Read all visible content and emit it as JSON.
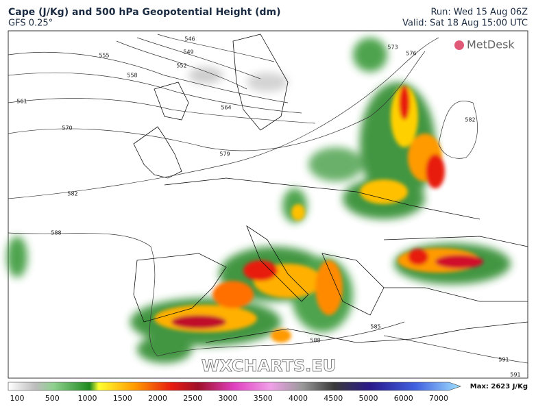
{
  "header": {
    "title": "Cape (J/Kg) and 500 hPa Geopotential Height (dm)",
    "model": "GFS 0.25°",
    "run": "Run: Wed 15 Aug 06Z",
    "valid": "Valid: Sat 18 Aug 15:00 UTC"
  },
  "logo": "MetDesk",
  "watermark": "WXCHARTS.EU",
  "contour_labels": [
    "546",
    "549",
    "552",
    "555",
    "558",
    "561",
    "564",
    "570",
    "573",
    "576",
    "579",
    "582",
    "582",
    "588",
    "585",
    "588",
    "591",
    "591"
  ],
  "colorbar": {
    "ticks": [
      "100",
      "500",
      "1000",
      "1500",
      "2000",
      "2500",
      "3000",
      "3500",
      "4000",
      "4500",
      "5000",
      "6000",
      "7000"
    ],
    "max_label": "Max: 2623 J/Kg"
  }
}
